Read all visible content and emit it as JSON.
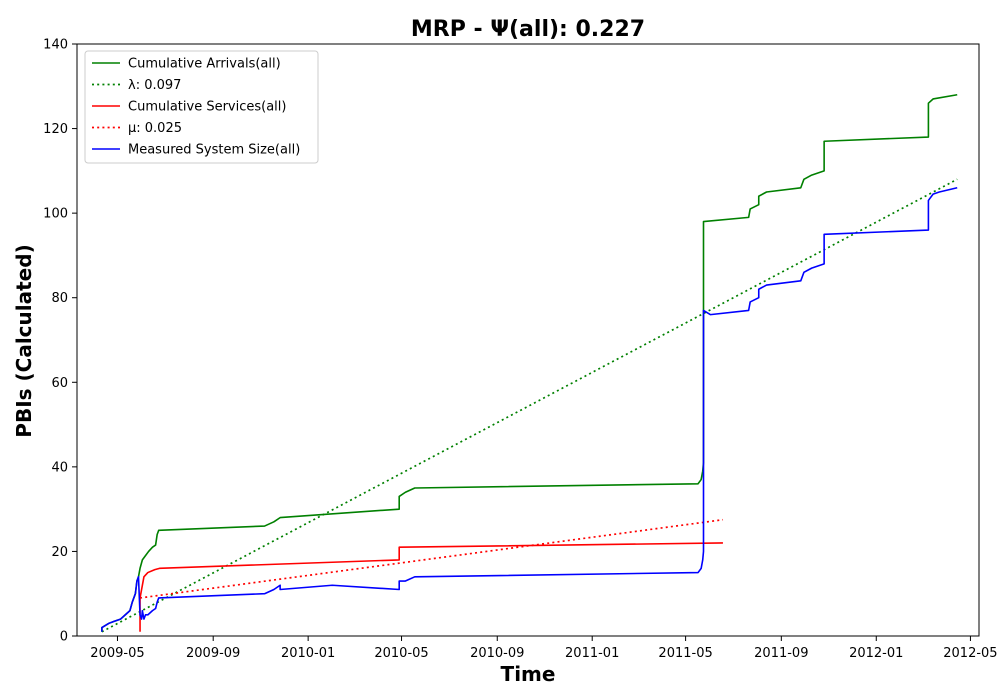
{
  "chart_data": {
    "type": "line",
    "title": "MRP -  Ψ(all): 0.227",
    "xlabel": "Time",
    "ylabel": "PBIs (Calculated)",
    "x_axis_kind": "date",
    "xlim": [
      "2009-03-10",
      "2012-05-12"
    ],
    "ylim": [
      0,
      140
    ],
    "x_ticks": [
      "2009-05-01",
      "2009-09-01",
      "2010-01-01",
      "2010-05-01",
      "2010-09-01",
      "2011-01-01",
      "2011-05-01",
      "2011-09-01",
      "2012-01-01",
      "2012-05-01"
    ],
    "x_tick_labels": [
      "2009-05",
      "2009-09",
      "2010-01",
      "2010-05",
      "2010-09",
      "2011-01",
      "2011-05",
      "2011-09",
      "2012-01",
      "2012-05"
    ],
    "y_ticks": [
      0,
      20,
      40,
      60,
      80,
      100,
      120,
      140
    ],
    "y_tick_labels": [
      "0",
      "20",
      "40",
      "60",
      "80",
      "100",
      "120",
      "140"
    ],
    "grid": false,
    "legend_position": "top-left",
    "series": [
      {
        "name": "Cumulative Arrivals(all)",
        "color": "#008000",
        "style": "solid",
        "points": [
          [
            "2009-04-11",
            1
          ],
          [
            "2009-04-11",
            2
          ],
          [
            "2009-04-20",
            3
          ],
          [
            "2009-04-27",
            3.5
          ],
          [
            "2009-05-05",
            4
          ],
          [
            "2009-05-17",
            6
          ],
          [
            "2009-05-20",
            8
          ],
          [
            "2009-05-24",
            10
          ],
          [
            "2009-05-26",
            13
          ],
          [
            "2009-05-28",
            14
          ],
          [
            "2009-05-30",
            16
          ],
          [
            "2009-06-02",
            18
          ],
          [
            "2009-06-06",
            19
          ],
          [
            "2009-06-10",
            20
          ],
          [
            "2009-06-15",
            21
          ],
          [
            "2009-06-19",
            21.5
          ],
          [
            "2009-06-21",
            24
          ],
          [
            "2009-06-23",
            25
          ],
          [
            "2009-11-06",
            26
          ],
          [
            "2009-11-18",
            27
          ],
          [
            "2009-11-26",
            28
          ],
          [
            "2010-04-28",
            30
          ],
          [
            "2010-04-28",
            33
          ],
          [
            "2010-05-06",
            34
          ],
          [
            "2010-05-18",
            35
          ],
          [
            "2011-05-17",
            36
          ],
          [
            "2011-05-21",
            37
          ],
          [
            "2011-05-23",
            39
          ],
          [
            "2011-05-24",
            41
          ],
          [
            "2011-05-24",
            98
          ],
          [
            "2011-07-21",
            99
          ],
          [
            "2011-07-23",
            101
          ],
          [
            "2011-08-03",
            102
          ],
          [
            "2011-08-03",
            104
          ],
          [
            "2011-08-13",
            105
          ],
          [
            "2011-09-26",
            106
          ],
          [
            "2011-09-30",
            108
          ],
          [
            "2011-10-10",
            109
          ],
          [
            "2011-10-26",
            110
          ],
          [
            "2011-10-26",
            117
          ],
          [
            "2012-03-08",
            118
          ],
          [
            "2012-03-08",
            126
          ],
          [
            "2012-03-14",
            127
          ],
          [
            "2012-04-14",
            128
          ]
        ]
      },
      {
        "name": "λ: 0.097",
        "color": "#008000",
        "style": "dotted",
        "points": [
          [
            "2009-04-11",
            1
          ],
          [
            "2012-04-14",
            108
          ]
        ]
      },
      {
        "name": "Cumulative Services(all)",
        "color": "#ff0000",
        "style": "solid",
        "points": [
          [
            "2009-05-30",
            1
          ],
          [
            "2009-05-30",
            9
          ],
          [
            "2009-06-01",
            11
          ],
          [
            "2009-06-04",
            14
          ],
          [
            "2009-06-09",
            15
          ],
          [
            "2009-06-18",
            15.7
          ],
          [
            "2009-06-24",
            16
          ],
          [
            "2010-04-28",
            18
          ],
          [
            "2010-04-28",
            21
          ],
          [
            "2011-06-18",
            22
          ]
        ]
      },
      {
        "name": "μ: 0.025",
        "color": "#ff0000",
        "style": "dotted",
        "points": [
          [
            "2009-05-30",
            9
          ],
          [
            "2011-06-18",
            27.5
          ]
        ]
      },
      {
        "name": "Measured System Size(all)",
        "color": "#0000ff",
        "style": "solid",
        "points": [
          [
            "2009-04-11",
            1
          ],
          [
            "2009-04-11",
            2
          ],
          [
            "2009-04-20",
            3
          ],
          [
            "2009-04-27",
            3.5
          ],
          [
            "2009-05-05",
            4
          ],
          [
            "2009-05-17",
            6
          ],
          [
            "2009-05-20",
            8
          ],
          [
            "2009-05-24",
            10
          ],
          [
            "2009-05-26",
            13
          ],
          [
            "2009-05-28",
            14
          ],
          [
            "2009-05-30",
            5
          ],
          [
            "2009-06-01",
            4
          ],
          [
            "2009-06-02",
            6
          ],
          [
            "2009-06-04",
            4
          ],
          [
            "2009-06-06",
            5
          ],
          [
            "2009-06-09",
            5
          ],
          [
            "2009-06-15",
            6
          ],
          [
            "2009-06-19",
            6.5
          ],
          [
            "2009-06-21",
            8
          ],
          [
            "2009-06-23",
            9
          ],
          [
            "2009-11-06",
            10
          ],
          [
            "2009-11-18",
            11
          ],
          [
            "2009-11-26",
            12
          ],
          [
            "2009-11-26",
            11
          ],
          [
            "2010-02-01",
            12
          ],
          [
            "2010-04-28",
            11
          ],
          [
            "2010-04-28",
            13
          ],
          [
            "2010-05-06",
            13
          ],
          [
            "2010-05-18",
            14
          ],
          [
            "2011-05-17",
            15
          ],
          [
            "2011-05-21",
            16
          ],
          [
            "2011-05-23",
            18
          ],
          [
            "2011-05-24",
            20
          ],
          [
            "2011-05-24",
            77
          ],
          [
            "2011-06-02",
            76
          ],
          [
            "2011-07-21",
            77
          ],
          [
            "2011-07-23",
            79
          ],
          [
            "2011-08-03",
            80
          ],
          [
            "2011-08-03",
            82
          ],
          [
            "2011-08-13",
            83
          ],
          [
            "2011-09-26",
            84
          ],
          [
            "2011-09-30",
            86
          ],
          [
            "2011-10-10",
            87
          ],
          [
            "2011-10-26",
            88
          ],
          [
            "2011-10-26",
            95
          ],
          [
            "2012-03-08",
            96
          ],
          [
            "2012-03-08",
            103
          ],
          [
            "2012-03-14",
            104.5
          ],
          [
            "2012-03-22",
            105
          ],
          [
            "2012-04-14",
            106
          ]
        ]
      }
    ]
  }
}
